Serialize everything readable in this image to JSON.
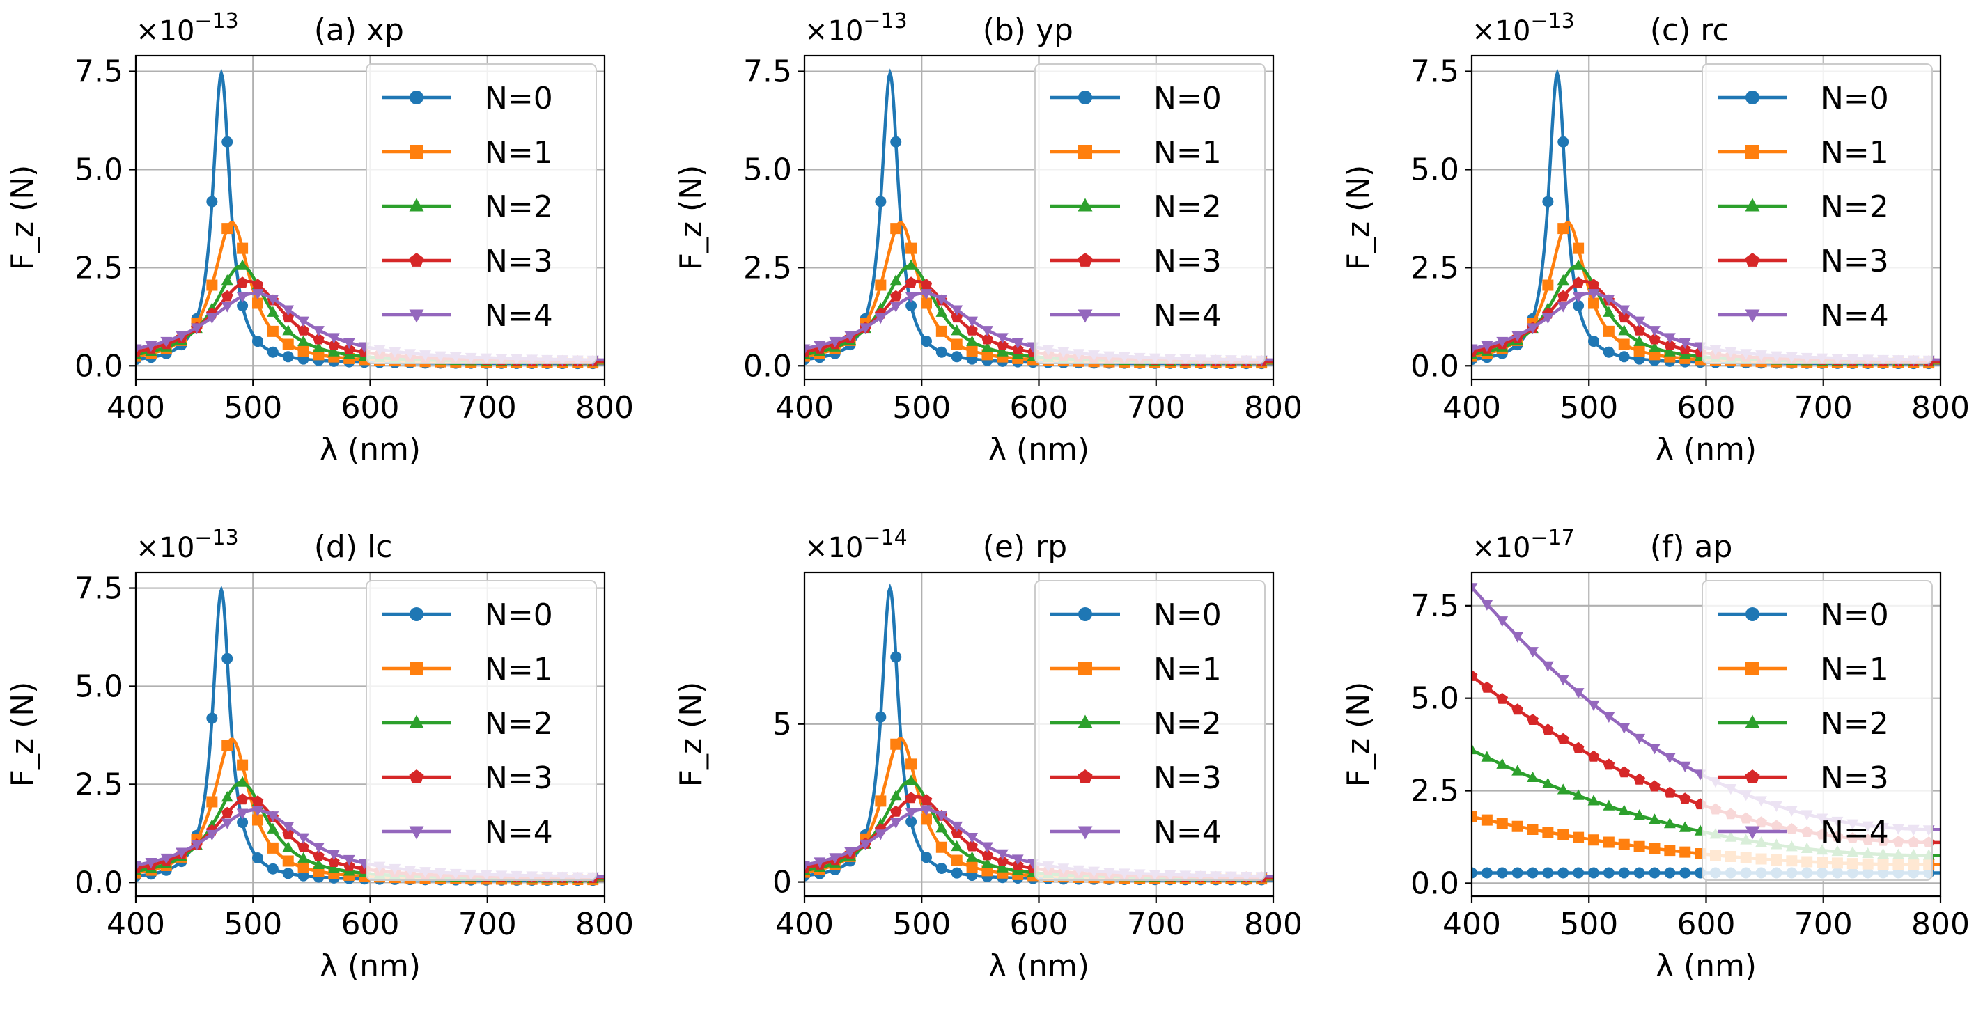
{
  "figure": {
    "background": "#ffffff"
  },
  "chart_data": [
    {
      "id": "a",
      "type": "line",
      "title": "(a) xp",
      "xlabel": "λ (nm)",
      "ylabel": "F_z (N)",
      "scale_label": "×10^−13",
      "scale_base": "×10",
      "scale_exp": "−13",
      "xlim": [
        400,
        800
      ],
      "ylim": [
        -0.35,
        7.9
      ],
      "xticks": [
        400,
        500,
        600,
        700,
        800
      ],
      "xticklabels": [
        "400",
        "500",
        "600",
        "700",
        "800"
      ],
      "yticks": [
        0,
        2.5,
        5,
        7.5
      ],
      "yticklabels": [
        "0.0",
        "2.5",
        "5.0",
        "7.5"
      ],
      "legend_location": "upper-right",
      "model": "lorentz",
      "series": [
        {
          "name": "N=0",
          "color": "#1f77b4",
          "marker": "circle",
          "peak_x": 473,
          "peak_y": 7.45,
          "width": 9,
          "base": 0.05
        },
        {
          "name": "N=1",
          "color": "#ff7f0e",
          "marker": "square",
          "peak_x": 482,
          "peak_y": 3.65,
          "width": 19,
          "base": 0.06
        },
        {
          "name": "N=2",
          "color": "#2ca02c",
          "marker": "triangle-up",
          "peak_x": 490,
          "peak_y": 2.55,
          "width": 28,
          "base": 0.07
        },
        {
          "name": "N=3",
          "color": "#d62728",
          "marker": "pentagon",
          "peak_x": 496,
          "peak_y": 2.15,
          "width": 38,
          "base": 0.08
        },
        {
          "name": "N=4",
          "color": "#9467bd",
          "marker": "triangle-down",
          "peak_x": 502,
          "peak_y": 1.85,
          "width": 50,
          "base": 0.1
        }
      ]
    },
    {
      "id": "b",
      "type": "line",
      "title": "(b) yp",
      "xlabel": "λ (nm)",
      "ylabel": "F_z (N)",
      "scale_label": "×10^−13",
      "scale_base": "×10",
      "scale_exp": "−13",
      "xlim": [
        400,
        800
      ],
      "ylim": [
        -0.35,
        7.9
      ],
      "xticks": [
        400,
        500,
        600,
        700,
        800
      ],
      "xticklabels": [
        "400",
        "500",
        "600",
        "700",
        "800"
      ],
      "yticks": [
        0,
        2.5,
        5,
        7.5
      ],
      "yticklabels": [
        "0.0",
        "2.5",
        "5.0",
        "7.5"
      ],
      "legend_location": "upper-right",
      "model": "lorentz",
      "series": [
        {
          "name": "N=0",
          "color": "#1f77b4",
          "marker": "circle",
          "peak_x": 473,
          "peak_y": 7.45,
          "width": 9,
          "base": 0.05
        },
        {
          "name": "N=1",
          "color": "#ff7f0e",
          "marker": "square",
          "peak_x": 482,
          "peak_y": 3.65,
          "width": 19,
          "base": 0.06
        },
        {
          "name": "N=2",
          "color": "#2ca02c",
          "marker": "triangle-up",
          "peak_x": 490,
          "peak_y": 2.55,
          "width": 28,
          "base": 0.07
        },
        {
          "name": "N=3",
          "color": "#d62728",
          "marker": "pentagon",
          "peak_x": 496,
          "peak_y": 2.15,
          "width": 38,
          "base": 0.08
        },
        {
          "name": "N=4",
          "color": "#9467bd",
          "marker": "triangle-down",
          "peak_x": 502,
          "peak_y": 1.85,
          "width": 50,
          "base": 0.1
        }
      ]
    },
    {
      "id": "c",
      "type": "line",
      "title": "(c) rc",
      "xlabel": "λ (nm)",
      "ylabel": "F_z (N)",
      "scale_label": "×10^−13",
      "scale_base": "×10",
      "scale_exp": "−13",
      "xlim": [
        400,
        800
      ],
      "ylim": [
        -0.35,
        7.9
      ],
      "xticks": [
        400,
        500,
        600,
        700,
        800
      ],
      "xticklabels": [
        "400",
        "500",
        "600",
        "700",
        "800"
      ],
      "yticks": [
        0,
        2.5,
        5,
        7.5
      ],
      "yticklabels": [
        "0.0",
        "2.5",
        "5.0",
        "7.5"
      ],
      "legend_location": "upper-right",
      "model": "lorentz",
      "series": [
        {
          "name": "N=0",
          "color": "#1f77b4",
          "marker": "circle",
          "peak_x": 473,
          "peak_y": 7.45,
          "width": 9,
          "base": 0.05
        },
        {
          "name": "N=1",
          "color": "#ff7f0e",
          "marker": "square",
          "peak_x": 482,
          "peak_y": 3.65,
          "width": 19,
          "base": 0.06
        },
        {
          "name": "N=2",
          "color": "#2ca02c",
          "marker": "triangle-up",
          "peak_x": 490,
          "peak_y": 2.55,
          "width": 28,
          "base": 0.07
        },
        {
          "name": "N=3",
          "color": "#d62728",
          "marker": "pentagon",
          "peak_x": 496,
          "peak_y": 2.15,
          "width": 38,
          "base": 0.08
        },
        {
          "name": "N=4",
          "color": "#9467bd",
          "marker": "triangle-down",
          "peak_x": 502,
          "peak_y": 1.85,
          "width": 50,
          "base": 0.1
        }
      ]
    },
    {
      "id": "d",
      "type": "line",
      "title": "(d) lc",
      "xlabel": "λ (nm)",
      "ylabel": "F_z (N)",
      "scale_label": "×10^−13",
      "scale_base": "×10",
      "scale_exp": "−13",
      "xlim": [
        400,
        800
      ],
      "ylim": [
        -0.35,
        7.9
      ],
      "xticks": [
        400,
        500,
        600,
        700,
        800
      ],
      "xticklabels": [
        "400",
        "500",
        "600",
        "700",
        "800"
      ],
      "yticks": [
        0,
        2.5,
        5,
        7.5
      ],
      "yticklabels": [
        "0.0",
        "2.5",
        "5.0",
        "7.5"
      ],
      "legend_location": "upper-right",
      "model": "lorentz",
      "series": [
        {
          "name": "N=0",
          "color": "#1f77b4",
          "marker": "circle",
          "peak_x": 473,
          "peak_y": 7.45,
          "width": 9,
          "base": 0.05
        },
        {
          "name": "N=1",
          "color": "#ff7f0e",
          "marker": "square",
          "peak_x": 482,
          "peak_y": 3.65,
          "width": 19,
          "base": 0.06
        },
        {
          "name": "N=2",
          "color": "#2ca02c",
          "marker": "triangle-up",
          "peak_x": 490,
          "peak_y": 2.55,
          "width": 28,
          "base": 0.07
        },
        {
          "name": "N=3",
          "color": "#d62728",
          "marker": "pentagon",
          "peak_x": 496,
          "peak_y": 2.15,
          "width": 38,
          "base": 0.08
        },
        {
          "name": "N=4",
          "color": "#9467bd",
          "marker": "triangle-down",
          "peak_x": 502,
          "peak_y": 1.85,
          "width": 50,
          "base": 0.1
        }
      ]
    },
    {
      "id": "e",
      "type": "line",
      "title": "(e) rp",
      "xlabel": "λ (nm)",
      "ylabel": "F_z (N)",
      "scale_label": "×10^−14",
      "scale_base": "×10",
      "scale_exp": "−14",
      "xlim": [
        400,
        800
      ],
      "ylim": [
        -0.45,
        9.8
      ],
      "xticks": [
        400,
        500,
        600,
        700,
        800
      ],
      "xticklabels": [
        "400",
        "500",
        "600",
        "700",
        "800"
      ],
      "yticks": [
        0,
        5
      ],
      "yticklabels": [
        "0",
        "5"
      ],
      "legend_location": "upper-right",
      "model": "lorentz",
      "series": [
        {
          "name": "N=0",
          "color": "#1f77b4",
          "marker": "circle",
          "peak_x": 473,
          "peak_y": 9.3,
          "width": 9,
          "base": 0.06
        },
        {
          "name": "N=1",
          "color": "#ff7f0e",
          "marker": "square",
          "peak_x": 482,
          "peak_y": 4.55,
          "width": 19,
          "base": 0.08
        },
        {
          "name": "N=2",
          "color": "#2ca02c",
          "marker": "triangle-up",
          "peak_x": 490,
          "peak_y": 3.2,
          "width": 28,
          "base": 0.09
        },
        {
          "name": "N=3",
          "color": "#d62728",
          "marker": "pentagon",
          "peak_x": 496,
          "peak_y": 2.7,
          "width": 38,
          "base": 0.1
        },
        {
          "name": "N=4",
          "color": "#9467bd",
          "marker": "triangle-down",
          "peak_x": 502,
          "peak_y": 2.3,
          "width": 50,
          "base": 0.12
        }
      ]
    },
    {
      "id": "f",
      "type": "line",
      "title": "(f) ap",
      "xlabel": "λ (nm)",
      "ylabel": "F_z (N)",
      "scale_label": "×10^−17",
      "scale_base": "×10",
      "scale_exp": "−17",
      "xlim": [
        400,
        800
      ],
      "ylim": [
        -0.35,
        8.4
      ],
      "xticks": [
        400,
        500,
        600,
        700,
        800
      ],
      "xticklabels": [
        "400",
        "500",
        "600",
        "700",
        "800"
      ],
      "yticks": [
        0,
        2.5,
        5,
        7.5
      ],
      "yticklabels": [
        "0.0",
        "2.5",
        "5.0",
        "7.5"
      ],
      "legend_location": "upper-right",
      "model": "power_decay",
      "series": [
        {
          "name": "N=0",
          "color": "#1f77b4",
          "marker": "circle",
          "start": 0.28,
          "end": 0.28
        },
        {
          "name": "N=1",
          "color": "#ff7f0e",
          "marker": "square",
          "start": 1.8,
          "end": 0.5
        },
        {
          "name": "N=2",
          "color": "#2ca02c",
          "marker": "triangle-up",
          "start": 3.6,
          "end": 0.75
        },
        {
          "name": "N=3",
          "color": "#d62728",
          "marker": "pentagon",
          "start": 5.6,
          "end": 1.1
        },
        {
          "name": "N=4",
          "color": "#9467bd",
          "marker": "triangle-down",
          "start": 8.0,
          "end": 1.45
        }
      ]
    }
  ]
}
